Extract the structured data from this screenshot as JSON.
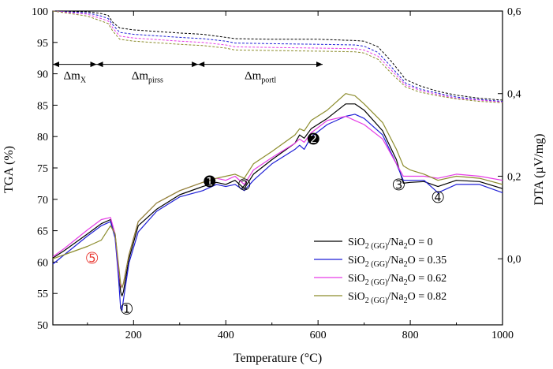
{
  "chart_data": {
    "type": "line",
    "xlabel": "Temperature (°C)",
    "ylabel_left": "TGA (%)",
    "ylabel_right": "DTA (µV/mg)",
    "xlim": [
      25,
      1000
    ],
    "ylim_left": [
      50,
      100
    ],
    "ylim_right": [
      -0.16,
      0.6
    ],
    "x_ticks": [
      200,
      400,
      600,
      800,
      1000
    ],
    "y_left_ticks": [
      50,
      55,
      60,
      65,
      70,
      75,
      80,
      85,
      90,
      95,
      100
    ],
    "y_right_ticks": [
      "0,0",
      "0,2",
      "0,4",
      "0,6"
    ],
    "y_right_tick_values": [
      0,
      0.2,
      0.4,
      0.6
    ],
    "legend_position": "bottom-right",
    "series": [
      {
        "name": "SiO2 (GG)/Na2O = 0",
        "color": "#000000",
        "tga": [
          [
            25,
            100
          ],
          [
            100,
            99.9
          ],
          [
            130,
            99.6
          ],
          [
            145,
            99.3
          ],
          [
            155,
            98.2
          ],
          [
            170,
            97.3
          ],
          [
            200,
            97
          ],
          [
            300,
            96.5
          ],
          [
            350,
            96.3
          ],
          [
            400,
            95.8
          ],
          [
            420,
            95.6
          ],
          [
            500,
            95.5
          ],
          [
            600,
            95.5
          ],
          [
            680,
            95.3
          ],
          [
            700,
            95.2
          ],
          [
            730,
            94.3
          ],
          [
            760,
            91.9
          ],
          [
            790,
            89.1
          ],
          [
            820,
            88.1
          ],
          [
            860,
            87.2
          ],
          [
            900,
            86.6
          ],
          [
            950,
            86.1
          ],
          [
            1000,
            85.8
          ]
        ],
        "dta": [
          [
            25,
            0.002
          ],
          [
            50,
            0.02
          ],
          [
            100,
            0.06
          ],
          [
            130,
            0.085
          ],
          [
            150,
            0.095
          ],
          [
            160,
            0.06
          ],
          [
            167,
            -0.02
          ],
          [
            172,
            -0.08
          ],
          [
            175,
            -0.09
          ],
          [
            178,
            -0.08
          ],
          [
            190,
            0
          ],
          [
            210,
            0.08
          ],
          [
            250,
            0.12
          ],
          [
            300,
            0.155
          ],
          [
            350,
            0.175
          ],
          [
            380,
            0.185
          ],
          [
            400,
            0.18
          ],
          [
            420,
            0.19
          ],
          [
            440,
            0.17
          ],
          [
            460,
            0.205
          ],
          [
            500,
            0.24
          ],
          [
            550,
            0.28
          ],
          [
            560,
            0.3
          ],
          [
            570,
            0.292
          ],
          [
            585,
            0.315
          ],
          [
            620,
            0.34
          ],
          [
            660,
            0.375
          ],
          [
            680,
            0.375
          ],
          [
            700,
            0.36
          ],
          [
            740,
            0.31
          ],
          [
            770,
            0.24
          ],
          [
            785,
            0.183
          ],
          [
            800,
            0.185
          ],
          [
            830,
            0.187
          ],
          [
            860,
            0.175
          ],
          [
            900,
            0.19
          ],
          [
            950,
            0.187
          ],
          [
            1000,
            0.17
          ]
        ]
      },
      {
        "name": "SiO2 (GG)/Na2O = 0.35",
        "color": "#1f1fd6",
        "tga": [
          [
            25,
            100
          ],
          [
            100,
            99.7
          ],
          [
            130,
            99.2
          ],
          [
            145,
            98.8
          ],
          [
            155,
            97.8
          ],
          [
            170,
            96.6
          ],
          [
            200,
            96.3
          ],
          [
            300,
            95.8
          ],
          [
            350,
            95.6
          ],
          [
            400,
            95.2
          ],
          [
            420,
            94.9
          ],
          [
            500,
            94.8
          ],
          [
            600,
            94.7
          ],
          [
            680,
            94.6
          ],
          [
            700,
            94.4
          ],
          [
            730,
            93.4
          ],
          [
            760,
            91
          ],
          [
            790,
            88.5
          ],
          [
            820,
            87.6
          ],
          [
            860,
            86.9
          ],
          [
            900,
            86.3
          ],
          [
            950,
            85.9
          ],
          [
            1000,
            85.6
          ]
        ],
        "dta": [
          [
            25,
            -0.013
          ],
          [
            50,
            0.01
          ],
          [
            100,
            0.055
          ],
          [
            130,
            0.08
          ],
          [
            150,
            0.09
          ],
          [
            160,
            0.05
          ],
          [
            167,
            -0.04
          ],
          [
            172,
            -0.12
          ],
          [
            175,
            -0.125
          ],
          [
            178,
            -0.1
          ],
          [
            190,
            -0.01
          ],
          [
            210,
            0.065
          ],
          [
            250,
            0.115
          ],
          [
            300,
            0.15
          ],
          [
            350,
            0.165
          ],
          [
            380,
            0.18
          ],
          [
            400,
            0.175
          ],
          [
            420,
            0.18
          ],
          [
            440,
            0.165
          ],
          [
            460,
            0.19
          ],
          [
            500,
            0.23
          ],
          [
            550,
            0.265
          ],
          [
            560,
            0.275
          ],
          [
            570,
            0.265
          ],
          [
            585,
            0.295
          ],
          [
            620,
            0.325
          ],
          [
            660,
            0.345
          ],
          [
            680,
            0.35
          ],
          [
            700,
            0.34
          ],
          [
            740,
            0.3
          ],
          [
            770,
            0.23
          ],
          [
            785,
            0.19
          ],
          [
            800,
            0.19
          ],
          [
            830,
            0.19
          ],
          [
            860,
            0.16
          ],
          [
            900,
            0.18
          ],
          [
            950,
            0.18
          ],
          [
            1000,
            0.16
          ]
        ]
      },
      {
        "name": "SiO2 (GG)/Na2O = 0.62",
        "color": "#e63ce6",
        "tga": [
          [
            25,
            100
          ],
          [
            100,
            99.5
          ],
          [
            130,
            98.8
          ],
          [
            145,
            98.4
          ],
          [
            155,
            97.3
          ],
          [
            170,
            96
          ],
          [
            200,
            95.7
          ],
          [
            300,
            95.2
          ],
          [
            350,
            95
          ],
          [
            400,
            94.6
          ],
          [
            420,
            94.3
          ],
          [
            500,
            94.2
          ],
          [
            600,
            94.1
          ],
          [
            680,
            94
          ],
          [
            700,
            93.8
          ],
          [
            730,
            92.8
          ],
          [
            760,
            90.5
          ],
          [
            790,
            88.2
          ],
          [
            820,
            87.4
          ],
          [
            860,
            86.7
          ],
          [
            900,
            86.1
          ],
          [
            950,
            85.8
          ],
          [
            1000,
            85.5
          ]
        ],
        "dta": [
          [
            25,
            0.005
          ],
          [
            50,
            0.025
          ],
          [
            100,
            0.07
          ],
          [
            130,
            0.095
          ],
          [
            150,
            0.1
          ],
          [
            160,
            0.06
          ],
          [
            167,
            -0.02
          ],
          [
            172,
            -0.065
          ],
          [
            175,
            -0.07
          ],
          [
            178,
            -0.06
          ],
          [
            190,
            0.01
          ],
          [
            210,
            0.09
          ],
          [
            250,
            0.135
          ],
          [
            300,
            0.165
          ],
          [
            350,
            0.185
          ],
          [
            380,
            0.195
          ],
          [
            400,
            0.19
          ],
          [
            420,
            0.2
          ],
          [
            440,
            0.18
          ],
          [
            460,
            0.215
          ],
          [
            500,
            0.245
          ],
          [
            550,
            0.28
          ],
          [
            560,
            0.29
          ],
          [
            570,
            0.282
          ],
          [
            585,
            0.305
          ],
          [
            620,
            0.335
          ],
          [
            660,
            0.345
          ],
          [
            680,
            0.335
          ],
          [
            700,
            0.325
          ],
          [
            740,
            0.29
          ],
          [
            770,
            0.23
          ],
          [
            785,
            0.2
          ],
          [
            800,
            0.2
          ],
          [
            830,
            0.2
          ],
          [
            860,
            0.195
          ],
          [
            900,
            0.205
          ],
          [
            950,
            0.2
          ],
          [
            1000,
            0.19
          ]
        ]
      },
      {
        "name": "SiO2 (GG)/Na2O = 0.82",
        "color": "#8c8c2c",
        "tga": [
          [
            25,
            100
          ],
          [
            100,
            99.2
          ],
          [
            130,
            98.4
          ],
          [
            145,
            98
          ],
          [
            155,
            96.8
          ],
          [
            170,
            95.5
          ],
          [
            200,
            95.2
          ],
          [
            300,
            94.7
          ],
          [
            350,
            94.5
          ],
          [
            400,
            94.1
          ],
          [
            420,
            93.8
          ],
          [
            500,
            93.7
          ],
          [
            600,
            93.6
          ],
          [
            680,
            93.5
          ],
          [
            700,
            93.3
          ],
          [
            730,
            92.3
          ],
          [
            760,
            90
          ],
          [
            790,
            87.9
          ],
          [
            820,
            87.1
          ],
          [
            860,
            86.5
          ],
          [
            900,
            86
          ],
          [
            950,
            85.6
          ],
          [
            1000,
            85.4
          ]
        ],
        "dta": [
          [
            25,
            0
          ],
          [
            50,
            0.01
          ],
          [
            100,
            0.03
          ],
          [
            130,
            0.045
          ],
          [
            150,
            0.08
          ],
          [
            160,
            0.06
          ],
          [
            167,
            -0.01
          ],
          [
            172,
            -0.06
          ],
          [
            175,
            -0.07
          ],
          [
            178,
            -0.06
          ],
          [
            190,
            0.01
          ],
          [
            210,
            0.09
          ],
          [
            250,
            0.135
          ],
          [
            300,
            0.165
          ],
          [
            350,
            0.185
          ],
          [
            380,
            0.195
          ],
          [
            400,
            0.2
          ],
          [
            420,
            0.205
          ],
          [
            440,
            0.195
          ],
          [
            460,
            0.23
          ],
          [
            500,
            0.26
          ],
          [
            550,
            0.3
          ],
          [
            560,
            0.315
          ],
          [
            570,
            0.31
          ],
          [
            585,
            0.335
          ],
          [
            620,
            0.36
          ],
          [
            660,
            0.4
          ],
          [
            680,
            0.395
          ],
          [
            700,
            0.375
          ],
          [
            740,
            0.33
          ],
          [
            770,
            0.265
          ],
          [
            785,
            0.225
          ],
          [
            800,
            0.215
          ],
          [
            830,
            0.205
          ],
          [
            860,
            0.19
          ],
          [
            900,
            0.2
          ],
          [
            950,
            0.195
          ],
          [
            1000,
            0.18
          ]
        ]
      }
    ],
    "annotations": [
      {
        "kind": "bracket",
        "label_main": "Δm",
        "label_sub": "X",
        "x_start": 25,
        "x_end": 120,
        "y": 91.5
      },
      {
        "kind": "bracket",
        "label_main": "Δm",
        "label_sub": "pirss",
        "x_start": 120,
        "x_end": 340,
        "y": 91.5
      },
      {
        "kind": "bracket",
        "label_main": "Δm",
        "label_sub": "portl",
        "x_start": 340,
        "x_end": 610,
        "y": 91.5
      },
      {
        "kind": "marker",
        "text": "➀",
        "x": 185,
        "y": 52.5,
        "style": "circled",
        "color": "#000000"
      },
      {
        "kind": "marker",
        "text": "➁",
        "x": 440,
        "y": 72.3,
        "style": "circled",
        "color": "#000000"
      },
      {
        "kind": "marker",
        "text": "➂",
        "x": 775,
        "y": 72.3,
        "style": "circled",
        "color": "#000000"
      },
      {
        "kind": "marker",
        "text": "➃",
        "x": 860,
        "y": 70.3,
        "style": "circled",
        "color": "#000000"
      },
      {
        "kind": "marker",
        "text": "➄",
        "x": 110,
        "y": 60.6,
        "style": "circled",
        "color": "#e8322b"
      },
      {
        "kind": "marker",
        "text": "➊",
        "x": 365,
        "y": 72.8,
        "style": "filled",
        "color": "#000000"
      },
      {
        "kind": "marker",
        "text": "➋",
        "x": 590,
        "y": 79.6,
        "style": "filled",
        "color": "#000000"
      }
    ]
  }
}
